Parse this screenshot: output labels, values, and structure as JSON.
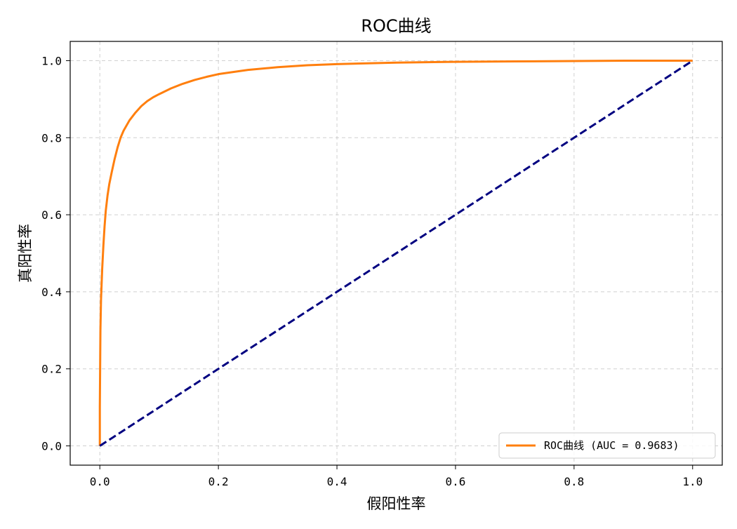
{
  "chart_data": {
    "type": "line",
    "title": "ROC曲线",
    "xlabel": "假阳性率",
    "ylabel": "真阳性率",
    "xlim": [
      -0.05,
      1.05
    ],
    "ylim": [
      -0.05,
      1.05
    ],
    "xticks": [
      0.0,
      0.2,
      0.4,
      0.6,
      0.8,
      1.0
    ],
    "yticks": [
      0.0,
      0.2,
      0.4,
      0.6,
      0.8,
      1.0
    ],
    "xtick_labels": [
      "0.0",
      "0.2",
      "0.4",
      "0.6",
      "0.8",
      "1.0"
    ],
    "ytick_labels": [
      "0.0",
      "0.2",
      "0.4",
      "0.6",
      "0.8",
      "1.0"
    ],
    "grid": true,
    "legend_position": "lower-right",
    "series": [
      {
        "name": "ROC曲线 (AUC = 0.9683)",
        "color": "#ff7f0e",
        "style": "solid",
        "x": [
          0.0,
          0.0,
          0.001,
          0.002,
          0.004,
          0.006,
          0.008,
          0.01,
          0.013,
          0.016,
          0.02,
          0.025,
          0.03,
          0.035,
          0.04,
          0.05,
          0.06,
          0.07,
          0.08,
          0.09,
          0.1,
          0.12,
          0.14,
          0.16,
          0.18,
          0.2,
          0.25,
          0.3,
          0.35,
          0.4,
          0.5,
          0.6,
          0.7,
          0.8,
          0.9,
          1.0
        ],
        "y": [
          0.0,
          0.1,
          0.3,
          0.38,
          0.46,
          0.52,
          0.57,
          0.61,
          0.65,
          0.68,
          0.71,
          0.745,
          0.775,
          0.8,
          0.818,
          0.845,
          0.865,
          0.882,
          0.895,
          0.905,
          0.913,
          0.928,
          0.94,
          0.95,
          0.958,
          0.965,
          0.976,
          0.983,
          0.988,
          0.991,
          0.995,
          0.997,
          0.998,
          0.999,
          1.0,
          1.0
        ]
      },
      {
        "name": "",
        "color": "#000080",
        "style": "dashed",
        "x": [
          0.0,
          1.0
        ],
        "y": [
          0.0,
          1.0
        ]
      }
    ]
  }
}
